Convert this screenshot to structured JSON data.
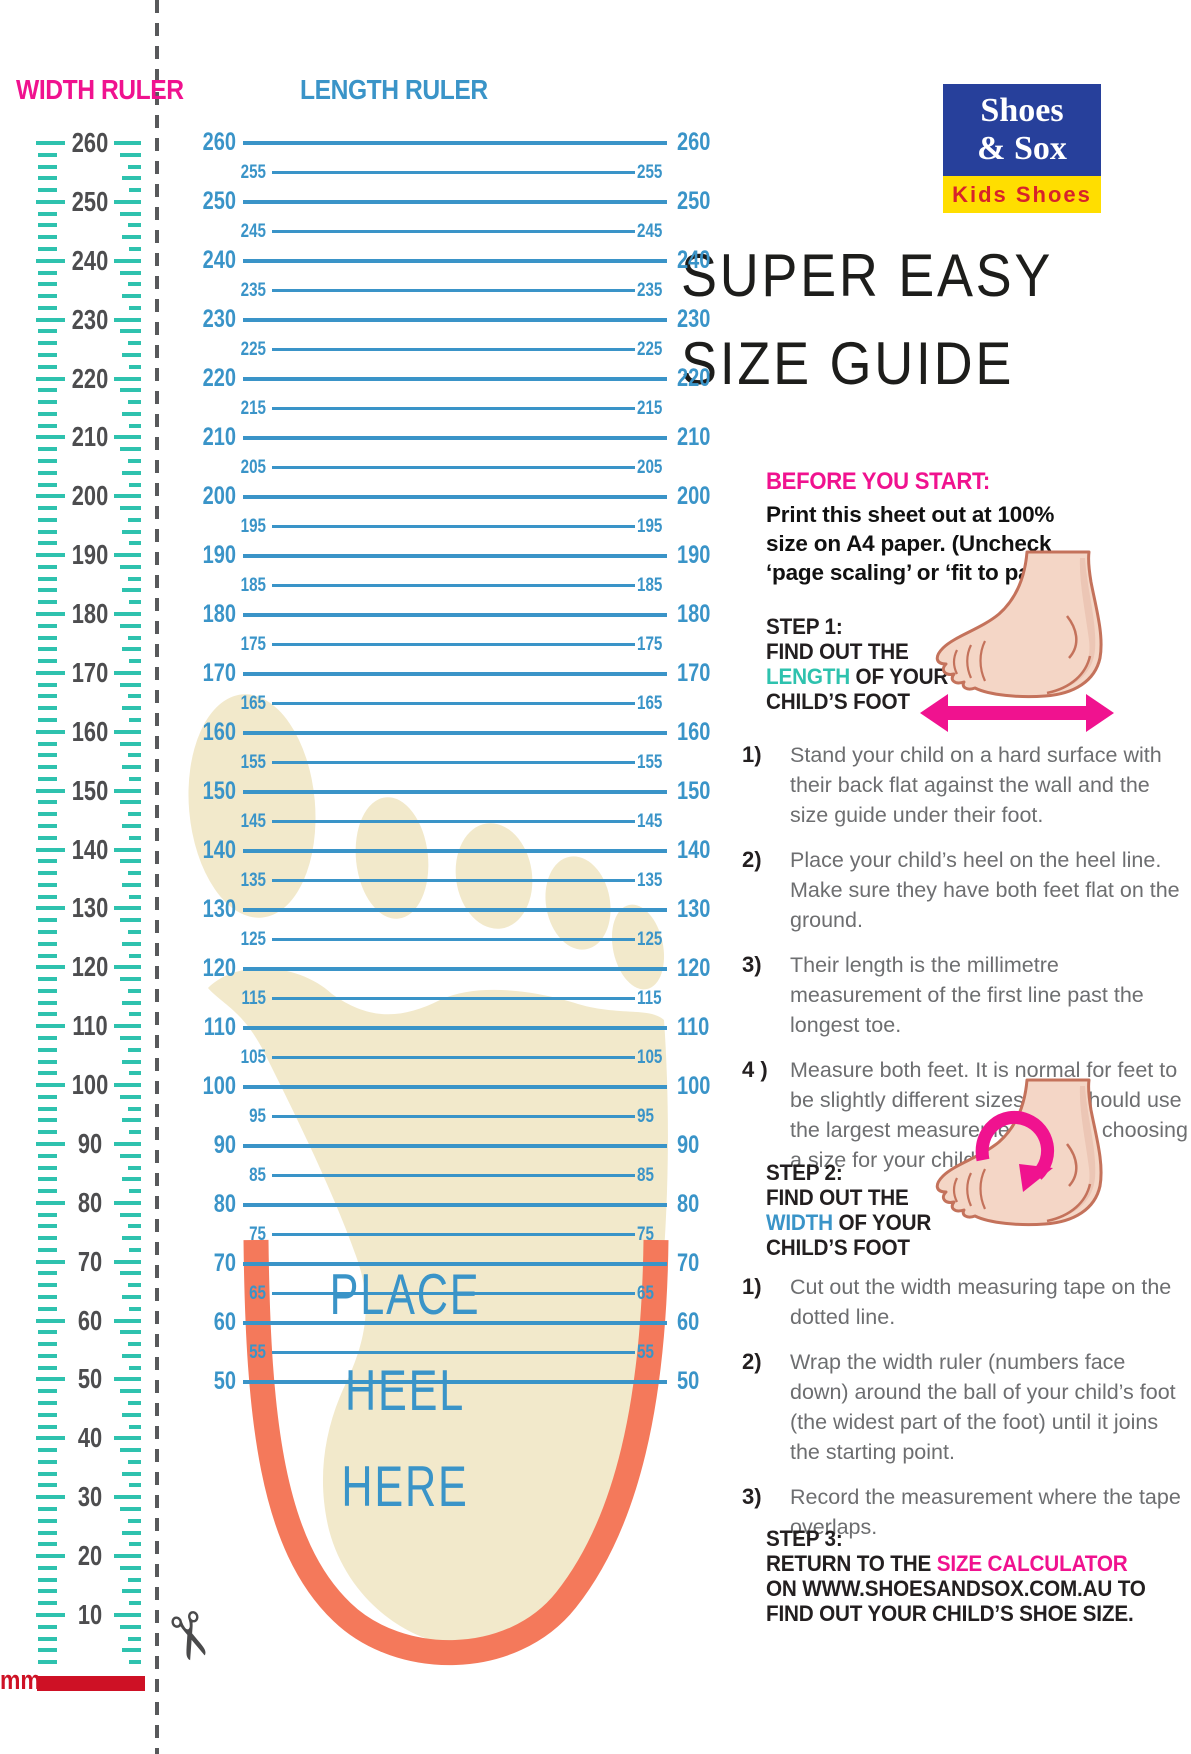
{
  "width_ruler": {
    "title": "WIDTH RULER",
    "unit_label": "mm",
    "max": 260,
    "values": [
      260,
      250,
      240,
      230,
      220,
      210,
      200,
      190,
      180,
      170,
      160,
      150,
      140,
      130,
      120,
      110,
      100,
      90,
      80,
      70,
      60,
      50,
      40,
      30,
      20,
      10
    ],
    "tick_step": 2,
    "tick_min": 2
  },
  "length_ruler": {
    "title": "LENGTH RULER",
    "max": 260,
    "major_step": 10,
    "values": [
      260,
      255,
      250,
      245,
      240,
      235,
      230,
      225,
      220,
      215,
      210,
      205,
      200,
      195,
      190,
      185,
      180,
      175,
      170,
      165,
      160,
      155,
      150,
      145,
      140,
      135,
      130,
      125,
      120,
      115,
      110,
      105,
      100,
      95,
      90,
      85,
      80,
      75,
      70,
      65,
      60,
      55,
      50
    ]
  },
  "heel": {
    "line1": "PLACE",
    "line2": "HEEL",
    "line3": "HERE"
  },
  "logo": {
    "name_line1": "Shoes",
    "name_line2": "& Sox",
    "tagline": "Kids Shoes"
  },
  "main_title": {
    "line1": "SUPER EASY",
    "line2": "SIZE GUIDE"
  },
  "before": {
    "heading": "BEFORE YOU START:",
    "body": "Print this sheet out at 100% size on A4 paper. (Uncheck ‘page scaling’ or ‘fit to page’)"
  },
  "step1": {
    "line1": "STEP 1:",
    "line2": "FIND OUT THE",
    "highlight": "LENGTH",
    "line3_rest": " OF YOUR",
    "line4": "CHILD’S FOOT",
    "items": [
      {
        "marker": "1)",
        "text": "Stand your child on a hard surface with their back flat against the wall and the size guide under their foot."
      },
      {
        "marker": "2)",
        "text": "Place your child’s heel on the heel line. Make sure they have both feet flat on the ground."
      },
      {
        "marker": "3)",
        "text": "Their length is the millimetre measurement of the first line past the longest toe."
      },
      {
        "marker": "4 )",
        "text": "Measure both feet. It is normal for feet to be slightly different sizes. You should use the largest measurements when choosing a size for your child."
      }
    ]
  },
  "step2": {
    "line1": "STEP 2:",
    "line2": "FIND OUT THE",
    "highlight": "WIDTH",
    "line3_rest": " OF YOUR",
    "line4": "CHILD’S FOOT",
    "items": [
      {
        "marker": "1)",
        "text": "Cut out the width measuring tape on the dotted line."
      },
      {
        "marker": "2)",
        "text": "Wrap the width ruler (numbers face down) around the ball of your child’s foot (the widest part of the foot) until it joins the starting point."
      },
      {
        "marker": "3)",
        "text": "Record the measurement where the tape overlaps."
      }
    ]
  },
  "step3": {
    "line1": "STEP 3:",
    "pre": "RETURN TO THE ",
    "link": "SIZE CALCULATOR",
    "post": " ON WWW.SHOESANDSOX.COM.AU TO FIND OUT YOUR CHILD’S SHOE SIZE."
  },
  "colors": {
    "pink": "#F0128F",
    "blue": "#3A94C8",
    "teal": "#2EC2AE",
    "coral": "#F4795B",
    "cream": "#F2E9CB",
    "red": "#CE1125",
    "logo_blue": "#27409B",
    "logo_yellow": "#FFDE00",
    "logo_red": "#D7232A",
    "skin": "#F4D6C6",
    "skin_outline": "#C4725B"
  }
}
